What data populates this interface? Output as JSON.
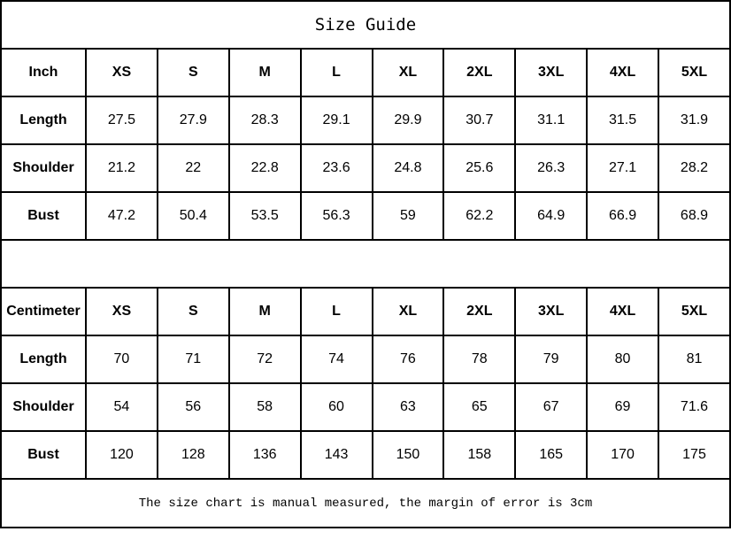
{
  "title": "Size Guide",
  "sizes": [
    "XS",
    "S",
    "M",
    "L",
    "XL",
    "2XL",
    "3XL",
    "4XL",
    "5XL"
  ],
  "tables": [
    {
      "unit": "Inch",
      "rows": [
        {
          "label": "Length",
          "values": [
            "27.5",
            "27.9",
            "28.3",
            "29.1",
            "29.9",
            "30.7",
            "31.1",
            "31.5",
            "31.9"
          ]
        },
        {
          "label": "Shoulder",
          "values": [
            "21.2",
            "22",
            "22.8",
            "23.6",
            "24.8",
            "25.6",
            "26.3",
            "27.1",
            "28.2"
          ]
        },
        {
          "label": "Bust",
          "values": [
            "47.2",
            "50.4",
            "53.5",
            "56.3",
            "59",
            "62.2",
            "64.9",
            "66.9",
            "68.9"
          ]
        }
      ]
    },
    {
      "unit": "Centimeter",
      "rows": [
        {
          "label": "Length",
          "values": [
            "70",
            "71",
            "72",
            "74",
            "76",
            "78",
            "79",
            "80",
            "81"
          ]
        },
        {
          "label": "Shoulder",
          "values": [
            "54",
            "56",
            "58",
            "60",
            "63",
            "65",
            "67",
            "69",
            "71.6"
          ]
        },
        {
          "label": "Bust",
          "values": [
            "120",
            "128",
            "136",
            "143",
            "150",
            "158",
            "165",
            "170",
            "175"
          ]
        }
      ]
    }
  ],
  "note": "The size chart is manual measured, the margin of error is 3cm"
}
